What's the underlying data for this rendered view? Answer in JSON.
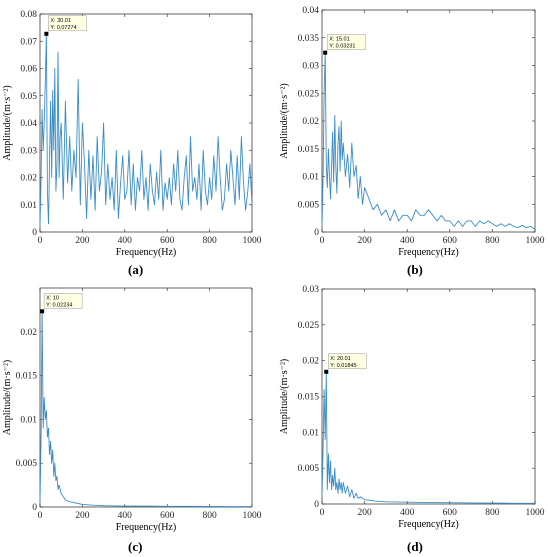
{
  "panels": [
    {
      "id": "a",
      "caption": "(a)",
      "chart_data": {
        "type": "line",
        "xlabel": "Frequency(Hz)",
        "ylabel": "Amplitude/(m·s⁻²)",
        "xlim": [
          0,
          1000
        ],
        "ylim": [
          0,
          0.08
        ],
        "xticks": [
          0,
          200,
          400,
          600,
          800,
          1000
        ],
        "yticks": [
          0,
          0.01,
          0.02,
          0.03,
          0.04,
          0.05,
          0.06,
          0.07,
          0.08
        ],
        "ytick_labels": [
          "0",
          "0.01",
          "0.02",
          "0.03",
          "0.04",
          "0.05",
          "0.06",
          "0.07",
          "0.08"
        ],
        "line_color": "#3a8dc7",
        "datatip": {
          "x": 30.01,
          "y": 0.07274,
          "label_x": "X: 30.01",
          "label_y": "Y: 0.07274"
        },
        "series": [
          {
            "x": [
              0,
              5,
              10,
              15,
              20,
              25,
              30,
              35,
              40,
              45,
              50,
              55,
              60,
              65,
              70,
              75,
              80,
              85,
              90,
              95,
              100,
              110,
              120,
              130,
              140,
              150,
              160,
              170,
              180,
              190,
              200,
              210,
              220,
              230,
              240,
              250,
              260,
              270,
              280,
              290,
              300,
              310,
              320,
              330,
              340,
              350,
              360,
              370,
              380,
              390,
              400,
              410,
              420,
              430,
              440,
              450,
              460,
              470,
              480,
              490,
              500,
              510,
              520,
              530,
              540,
              550,
              560,
              570,
              580,
              590,
              600,
              610,
              620,
              630,
              640,
              650,
              660,
              670,
              680,
              690,
              700,
              710,
              720,
              730,
              740,
              750,
              760,
              770,
              780,
              790,
              800,
              810,
              820,
              830,
              840,
              850,
              860,
              870,
              880,
              890,
              900,
              910,
              920,
              930,
              940,
              950,
              960,
              970,
              980,
              990,
              1000
            ],
            "y": [
              0.002,
              0.02,
              0.045,
              0.03,
              0.04,
              0.055,
              0.07274,
              0.015,
              0.003,
              0.025,
              0.048,
              0.02,
              0.052,
              0.03,
              0.06,
              0.015,
              0.025,
              0.066,
              0.02,
              0.035,
              0.04,
              0.012,
              0.048,
              0.018,
              0.035,
              0.015,
              0.03,
              0.02,
              0.056,
              0.01,
              0.04,
              0.025,
              0.005,
              0.03,
              0.012,
              0.028,
              0.008,
              0.035,
              0.015,
              0.022,
              0.04,
              0.01,
              0.025,
              0.012,
              0.02,
              0.008,
              0.03,
              0.005,
              0.018,
              0.028,
              0.012,
              0.015,
              0.03,
              0.01,
              0.025,
              0.008,
              0.02,
              0.015,
              0.03,
              0.012,
              0.02,
              0.008,
              0.025,
              0.015,
              0.01,
              0.022,
              0.012,
              0.03,
              0.008,
              0.018,
              0.012,
              0.02,
              0.01,
              0.025,
              0.015,
              0.03,
              0.012,
              0.008,
              0.02,
              0.028,
              0.01,
              0.035,
              0.015,
              0.02,
              0.012,
              0.025,
              0.008,
              0.03,
              0.015,
              0.01,
              0.02,
              0.012,
              0.028,
              0.015,
              0.035,
              0.02,
              0.008,
              0.012,
              0.025,
              0.015,
              0.03,
              0.02,
              0.01,
              0.028,
              0.012,
              0.035,
              0.018,
              0.008,
              0.015,
              0.025,
              0.01
            ]
          }
        ]
      }
    },
    {
      "id": "b",
      "caption": "(b)",
      "chart_data": {
        "type": "line",
        "xlabel": "Frequency(Hz)",
        "ylabel": "Amplitude/(m·s⁻²)",
        "xlim": [
          0,
          1000
        ],
        "ylim": [
          0,
          0.04
        ],
        "xticks": [
          0,
          200,
          400,
          600,
          800,
          1000
        ],
        "yticks": [
          0,
          0.005,
          0.01,
          0.015,
          0.02,
          0.025,
          0.03,
          0.035,
          0.04
        ],
        "ytick_labels": [
          "0",
          "0.005",
          "0.01",
          "0.015",
          "0.02",
          "0.025",
          "0.03",
          "0.035",
          "0.04"
        ],
        "line_color": "#3a8dc7",
        "datatip": {
          "x": 15.01,
          "y": 0.03231,
          "label_x": "X: 15.01",
          "label_y": "Y: 0.03231"
        },
        "series": [
          {
            "x": [
              0,
              5,
              10,
              15,
              20,
              25,
              30,
              35,
              40,
              45,
              50,
              55,
              60,
              65,
              70,
              75,
              80,
              85,
              90,
              95,
              100,
              110,
              120,
              130,
              140,
              150,
              160,
              170,
              180,
              190,
              200,
              220,
              240,
              260,
              280,
              300,
              320,
              340,
              360,
              380,
              400,
              420,
              440,
              460,
              480,
              500,
              520,
              540,
              560,
              580,
              600,
              620,
              640,
              660,
              680,
              700,
              720,
              740,
              760,
              780,
              800,
              820,
              840,
              860,
              880,
              900,
              920,
              940,
              960,
              980,
              1000
            ],
            "y": [
              0.001,
              0.01,
              0.025,
              0.03231,
              0.012,
              0.008,
              0.015,
              0.01,
              0.006,
              0.012,
              0.018,
              0.009,
              0.021,
              0.012,
              0.007,
              0.016,
              0.019,
              0.011,
              0.02,
              0.013,
              0.016,
              0.01,
              0.014,
              0.008,
              0.016,
              0.01,
              0.012,
              0.006,
              0.01,
              0.005,
              0.008,
              0.006,
              0.004,
              0.005,
              0.003,
              0.004,
              0.002,
              0.004,
              0.002,
              0.003,
              0.003,
              0.002,
              0.004,
              0.003,
              0.003,
              0.004,
              0.003,
              0.002,
              0.003,
              0.002,
              0.002,
              0.001,
              0.002,
              0.001,
              0.002,
              0.002,
              0.001,
              0.002,
              0.0015,
              0.002,
              0.0015,
              0.001,
              0.0015,
              0.001,
              0.0015,
              0.001,
              0.0008,
              0.0012,
              0.0008,
              0.001,
              0.0005
            ]
          }
        ]
      }
    },
    {
      "id": "c",
      "caption": "(c)",
      "chart_data": {
        "type": "line",
        "xlabel": "Frequency(Hz)",
        "ylabel": "Amplitude/(m·s⁻²)",
        "xlim": [
          0,
          1000
        ],
        "ylim": [
          0,
          0.025
        ],
        "xticks": [
          0,
          200,
          400,
          600,
          800,
          1000
        ],
        "yticks": [
          0,
          0.005,
          0.01,
          0.015,
          0.02
        ],
        "ytick_labels": [
          "0",
          "0.005",
          "0.01",
          "0.015",
          "0.02"
        ],
        "line_color": "#3a8dc7",
        "datatip": {
          "x": 10,
          "y": 0.02234,
          "label_x": "X: 10",
          "label_y": "Y: 0.02234"
        },
        "series": [
          {
            "x": [
              0,
              5,
              10,
              15,
              20,
              25,
              30,
              35,
              40,
              45,
              50,
              55,
              60,
              65,
              70,
              75,
              80,
              85,
              90,
              100,
              110,
              120,
              140,
              160,
              180,
              200,
              250,
              300,
              400,
              500,
              600,
              700,
              800,
              900,
              1000
            ],
            "y": [
              0.0005,
              0.008,
              0.02234,
              0.009,
              0.0125,
              0.01,
              0.011,
              0.008,
              0.009,
              0.006,
              0.0075,
              0.005,
              0.0065,
              0.0035,
              0.005,
              0.003,
              0.0035,
              0.002,
              0.0025,
              0.0015,
              0.0012,
              0.0008,
              0.0006,
              0.0005,
              0.0004,
              0.0003,
              0.0002,
              0.00015,
              0.0001,
              0.0001,
              8e-05,
              8e-05,
              6e-05,
              5e-05,
              5e-05
            ]
          }
        ]
      }
    },
    {
      "id": "d",
      "caption": "(d)",
      "chart_data": {
        "type": "line",
        "xlabel": "Frequency(Hz)",
        "ylabel": "Amplitude/(m·s⁻²)",
        "xlim": [
          0,
          1000
        ],
        "ylim": [
          0,
          0.03
        ],
        "xticks": [
          0,
          200,
          400,
          600,
          800,
          1000
        ],
        "yticks": [
          0,
          0.005,
          0.01,
          0.015,
          0.02,
          0.025,
          0.03
        ],
        "ytick_labels": [
          "0",
          "0.005",
          "0.01",
          "0.015",
          "0.02",
          "0.025",
          "0.03"
        ],
        "line_color": "#3a8dc7",
        "datatip": {
          "x": 20.01,
          "y": 0.01845,
          "label_x": "X: 20.01",
          "label_y": "Y: 0.01845"
        },
        "series": [
          {
            "x": [
              0,
              5,
              10,
              15,
              20,
              25,
              30,
              35,
              40,
              45,
              50,
              55,
              60,
              65,
              70,
              75,
              80,
              85,
              90,
              95,
              100,
              110,
              120,
              130,
              140,
              150,
              160,
              170,
              180,
              200,
              250,
              300,
              400,
              500,
              600,
              700,
              800,
              900,
              1000
            ],
            "y": [
              0.001,
              0.008,
              0.016,
              0.009,
              0.01845,
              0.002,
              0.007,
              0.003,
              0.006,
              0.002,
              0.004,
              0.0025,
              0.005,
              0.002,
              0.003,
              0.0015,
              0.0035,
              0.002,
              0.003,
              0.0015,
              0.003,
              0.0015,
              0.0025,
              0.001,
              0.002,
              0.0008,
              0.0015,
              0.0008,
              0.001,
              0.0006,
              0.0004,
              0.0003,
              0.00025,
              0.0002,
              0.00018,
              0.00015,
              0.00012,
              0.0001,
              0.0001
            ]
          }
        ]
      }
    }
  ]
}
